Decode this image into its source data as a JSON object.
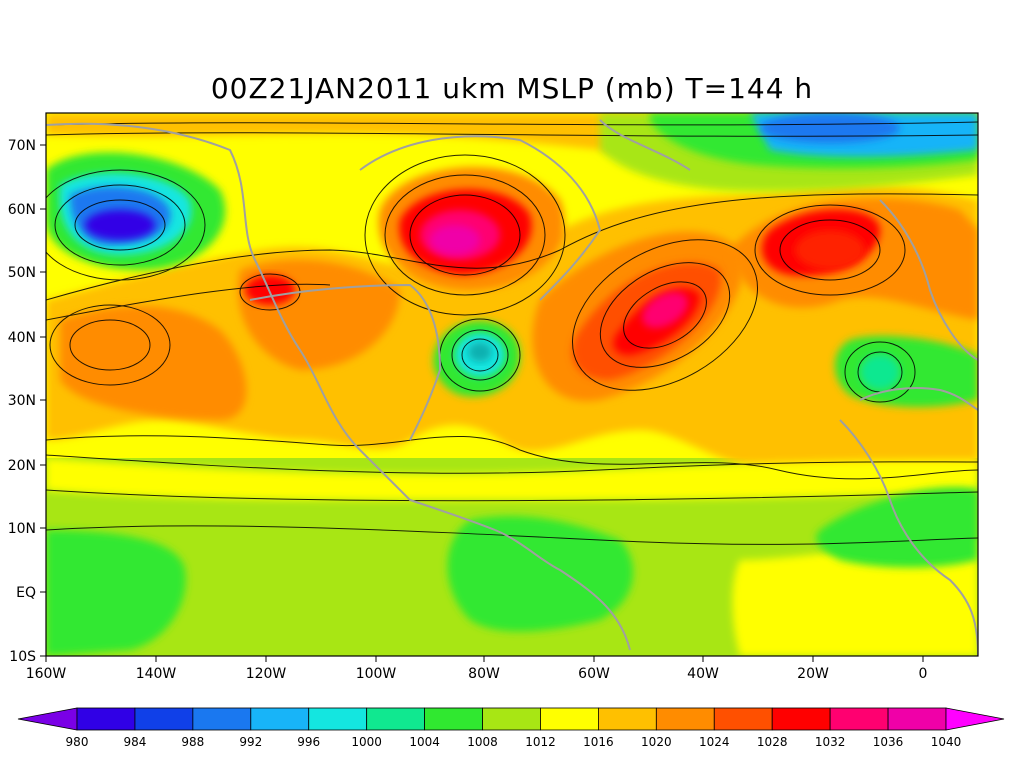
{
  "title": "00Z21JAN2011 ukm MSLP (mb) T=144 h",
  "lon_labels": [
    "160W",
    "140W",
    "120W",
    "100W",
    "80W",
    "60W",
    "40W",
    "20W",
    "0"
  ],
  "lat_labels": [
    "70N",
    "60N",
    "50N",
    "40N",
    "30N",
    "20N",
    "10N",
    "EQ",
    "10S"
  ],
  "colorbar": {
    "levels": [
      "980",
      "984",
      "988",
      "992",
      "996",
      "1000",
      "1004",
      "1008",
      "1012",
      "1016",
      "1020",
      "1024",
      "1028",
      "1032",
      "1036",
      "1040"
    ],
    "colors": [
      "#7a00e6",
      "#3000e6",
      "#1040e8",
      "#1a78f0",
      "#18b4f8",
      "#14e6e0",
      "#10e890",
      "#30e830",
      "#a8e614",
      "#ffff00",
      "#ffc000",
      "#ff8c00",
      "#ff5000",
      "#ff0000",
      "#ff0070",
      "#f000a8",
      "#ff00ff"
    ]
  },
  "map": {
    "lon_range": [
      "160W",
      "10E"
    ],
    "lat_range": [
      "10S",
      "75N"
    ],
    "field_colors": {
      "very_low": "#1a30e0",
      "low": "#18b4f8",
      "mid_low": "#30e830",
      "neutral": "#a8e614",
      "mid": "#ffff00",
      "mid_high": "#ffc000",
      "high": "#ff8c00",
      "very_high": "#ff0000",
      "extreme": "#ff0070",
      "coast": "#a0a0a0"
    }
  }
}
